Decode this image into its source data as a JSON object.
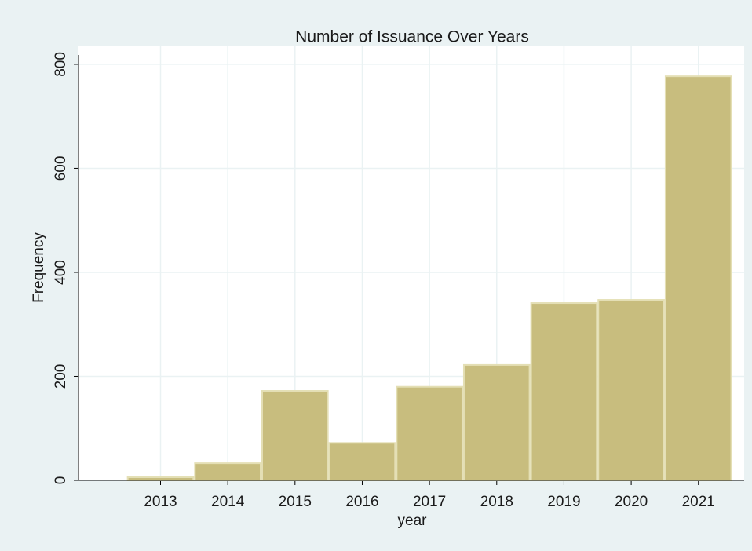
{
  "chart_data": {
    "type": "histogram",
    "title": "Number of Issuance Over Years",
    "x_label": "year",
    "y_label": "Frequency",
    "bins": [
      2012.5,
      2013.5,
      2014.5,
      2015.5,
      2016.5,
      2017.5,
      2018.5,
      2019.5,
      2020.5,
      2021.5
    ],
    "values": [
      6,
      33,
      172,
      72,
      180,
      222,
      341,
      347,
      777
    ],
    "color": "#c8bd7e",
    "xlim": [
      2011.78,
      2021.68
    ],
    "xticks": [
      2013,
      2014,
      2015,
      2016,
      2017,
      2018,
      2019,
      2020,
      2021
    ],
    "ylim": [
      0,
      818
    ],
    "yticks": [
      0,
      200,
      400,
      600,
      800
    ],
    "grid": true
  }
}
